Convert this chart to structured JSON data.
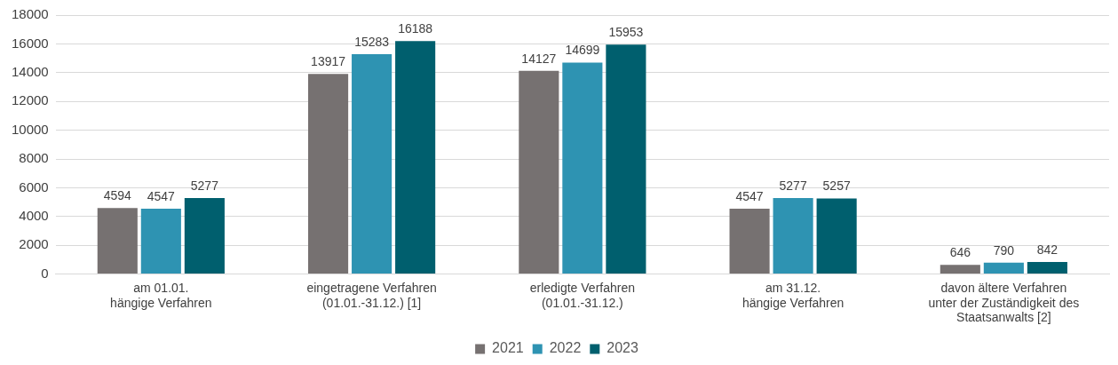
{
  "chart_data": {
    "type": "bar",
    "categories": [
      "am 01.01.\nhängige Verfahren",
      "eingetragene Verfahren\n(01.01.-31.12.) [1]",
      "erledigte Verfahren\n(01.01.-31.12.)",
      "am 31.12.\nhängige Verfahren",
      "davon ältere Verfahren\nunter der Zuständigkeit des\nStaatsanwalts [2]"
    ],
    "series": [
      {
        "name": "2021",
        "color": "#767171",
        "values": [
          4594,
          13917,
          14127,
          4547,
          646
        ]
      },
      {
        "name": "2022",
        "color": "#2e93b2",
        "values": [
          4547,
          15283,
          14699,
          5277,
          790
        ]
      },
      {
        "name": "2023",
        "color": "#005f6e",
        "values": [
          5277,
          16188,
          15953,
          5257,
          842
        ]
      }
    ],
    "ylim": [
      0,
      18000
    ],
    "yticks": [
      0,
      2000,
      4000,
      6000,
      8000,
      10000,
      12000,
      14000,
      16000,
      18000
    ],
    "grid": "y",
    "legend": "bottom",
    "data_labels": true
  }
}
